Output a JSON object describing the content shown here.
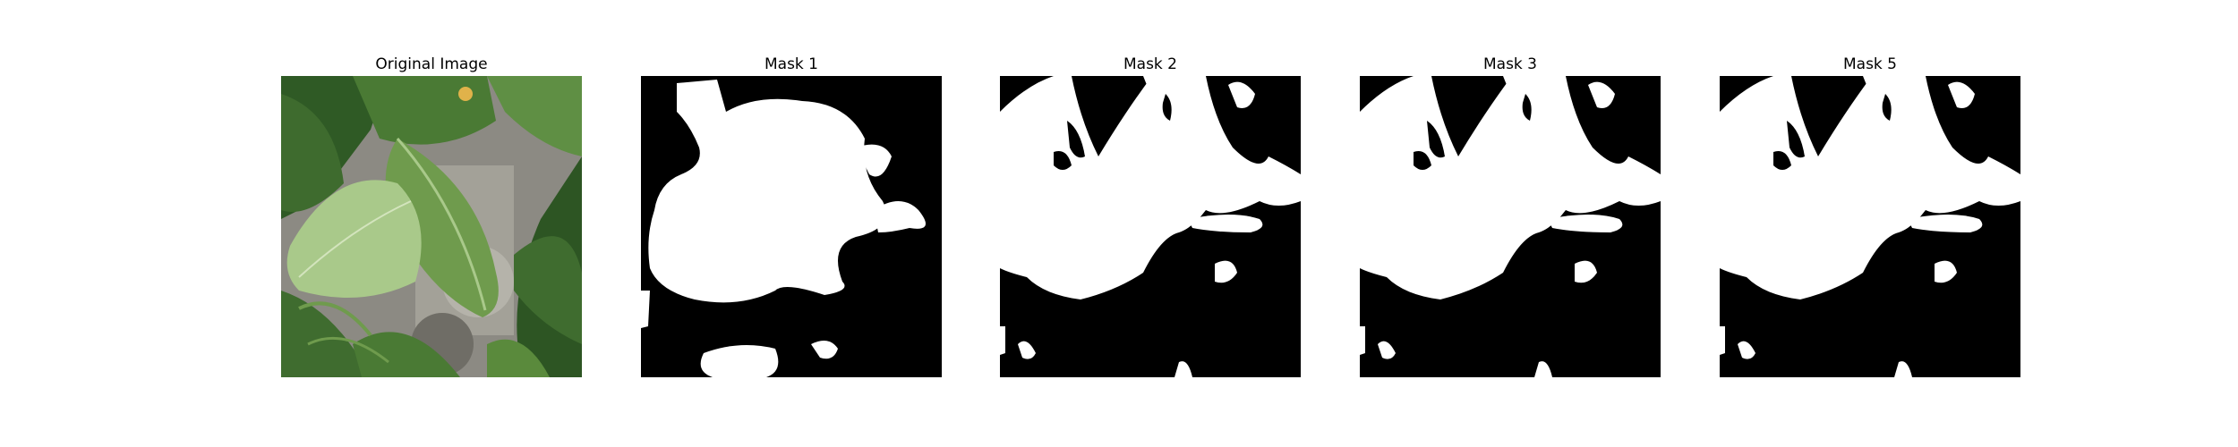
{
  "figure": {
    "panels": [
      {
        "title": "Original Image",
        "kind": "photo",
        "subject": "leaf-photo"
      },
      {
        "title": "Mask 1",
        "kind": "mask"
      },
      {
        "title": "Mask 2",
        "kind": "mask"
      },
      {
        "title": "Mask 3",
        "kind": "mask"
      },
      {
        "title": "Mask 5",
        "kind": "mask"
      }
    ]
  },
  "colors": {
    "background": "#ffffff",
    "mask_foreground": "#ffffff",
    "mask_background": "#000000",
    "leaf_dark": "#2f5a25",
    "leaf_mid": "#5a8a3c",
    "leaf_light": "#a9c98a",
    "ground": "#8c8a83"
  }
}
